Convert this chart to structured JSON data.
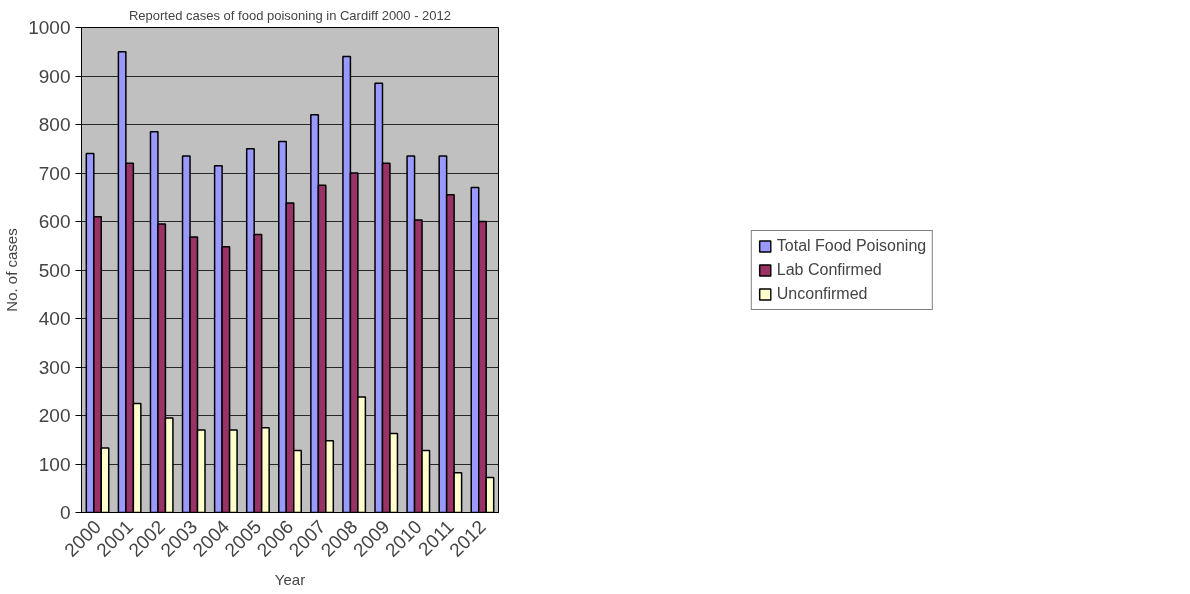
{
  "chart_data": {
    "type": "bar",
    "title": "Reported cases of food poisoning in Cardiff 2000 - 2012",
    "xlabel": "Year",
    "ylabel": "No. of cases",
    "categories": [
      "2000",
      "2001",
      "2002",
      "2003",
      "2004",
      "2005",
      "2006",
      "2007",
      "2008",
      "2009",
      "2010",
      "2011",
      "2012"
    ],
    "series": [
      {
        "name": "Total Food Poisoning",
        "color": "#9999ff",
        "values": [
          740,
          950,
          785,
          735,
          715,
          750,
          765,
          820,
          940,
          885,
          735,
          735,
          670
        ]
      },
      {
        "name": "Lab Confirmed",
        "color": "#993366",
        "values": [
          610,
          720,
          595,
          568,
          548,
          573,
          638,
          675,
          700,
          720,
          603,
          655,
          600
        ]
      },
      {
        "name": "Unconfirmed",
        "color": "#ffffcc",
        "values": [
          133,
          225,
          195,
          170,
          170,
          175,
          128,
          148,
          238,
          163,
          128,
          82,
          72
        ]
      }
    ],
    "ylim": [
      0,
      1000
    ],
    "yticks": [
      0,
      100,
      200,
      300,
      400,
      500,
      600,
      700,
      800,
      900,
      1000
    ],
    "grid": "y",
    "legend": "right"
  }
}
